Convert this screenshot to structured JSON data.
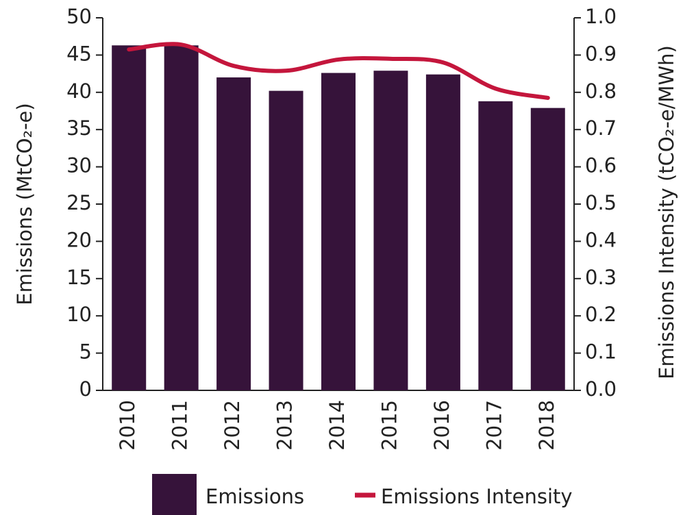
{
  "chart_data": {
    "type": "bar_line",
    "categories": [
      "2010",
      "2011",
      "2012",
      "2013",
      "2014",
      "2015",
      "2016",
      "2017",
      "2018"
    ],
    "series": [
      {
        "name": "Emissions",
        "type": "bar",
        "color": "#36133a",
        "values": [
          46.3,
          46.3,
          42.0,
          40.2,
          42.6,
          42.9,
          42.4,
          38.8,
          37.9
        ]
      },
      {
        "name": "Emissions Intensity",
        "type": "line",
        "axis": "y2",
        "color": "#c4163c",
        "values": [
          0.915,
          0.928,
          0.871,
          0.858,
          0.888,
          0.89,
          0.88,
          0.81,
          0.785
        ]
      }
    ],
    "ylabel": "Emissions (MtCO₂-e)",
    "y2label": "Emissions Intensity (tCO₂-e/MWh)",
    "ylim": [
      0,
      50
    ],
    "yticks": [
      0,
      5,
      10,
      15,
      20,
      25,
      30,
      35,
      40,
      45,
      50
    ],
    "y2lim": [
      0,
      1
    ],
    "y2ticks": [
      {
        "value": 0,
        "label": "0.0"
      },
      0.1,
      0.2,
      0.3,
      0.4,
      0.5,
      0.6,
      0.7,
      0.8,
      0.9,
      {
        "value": 1,
        "label": "1.0"
      }
    ],
    "grid": false,
    "legend": "bottom"
  }
}
